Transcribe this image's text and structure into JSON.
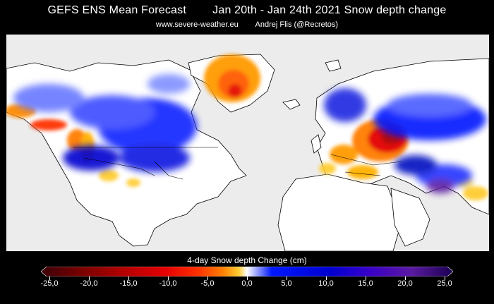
{
  "header": {
    "title": "GEFS ENS Mean Forecast        Jan 20th - Jan 24th 2021 Snow depth change",
    "subtitle": "www.severe-weather.eu        Andrej Flis (@Recretos)"
  },
  "map": {
    "region": "Northern Hemisphere (North America, Greenland, Europe, Asia)",
    "colors": {
      "ocean": "#ececec",
      "land": "#ffffff",
      "coastline": "#000000"
    }
  },
  "legend": {
    "title": "4-day Snow depth Change (cm)",
    "unit": "cm",
    "min": -25,
    "max": 25,
    "ticks": [
      "-25,0",
      "-20,0",
      "-15,0",
      "-10,0",
      "-5,0",
      "0,0",
      "5,0",
      "10,0",
      "15,0",
      "20,0",
      "25,0"
    ],
    "color_stops": [
      "#3b0008",
      "#7a0000",
      "#b30000",
      "#e40000",
      "#ff3000",
      "#ff7d00",
      "#ffcc33",
      "#ffffff",
      "#0018ff",
      "#0000d0",
      "#3a00c8",
      "#5a1aa0",
      "#1a0050"
    ]
  }
}
